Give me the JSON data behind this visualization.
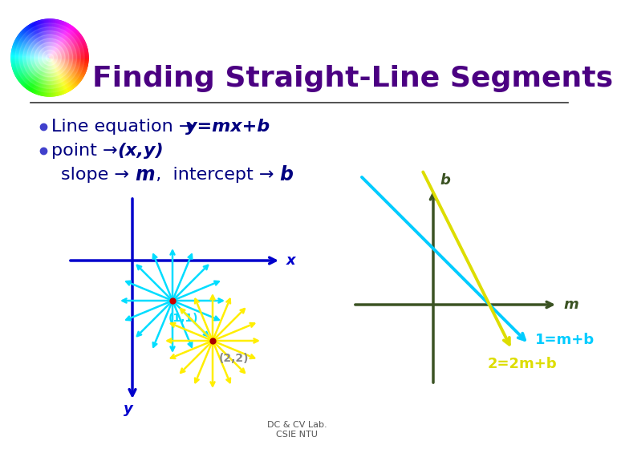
{
  "title": "Finding Straight-Line Segments",
  "title_color": "#4B0082",
  "title_fontsize": 26,
  "bg_color": "#FFFFFF",
  "bullet_color": "#000080",
  "bullet_fontsize": 16,
  "italic_color": "#000080",
  "footer": "DC & CV Lab.\nCSIE NTU",
  "footer_color": "#555555",
  "footer_fontsize": 8,
  "label_1_1": "(1,1)",
  "label_2_2": "(2,2)",
  "label_x": "x",
  "label_y": "y",
  "label_m": "m",
  "label_b": "b",
  "label_eq1": "1=m+b",
  "label_eq2": "2=2m+b",
  "axis_color_blue": "#0000CC",
  "axis_color_dark": "#3B5323",
  "arrow_cyan": "#00DDFF",
  "arrow_yellow": "#FFEE00",
  "eq1_color": "#00CCFF",
  "eq2_color": "#DDDD00",
  "dot_color1": "#CC0000",
  "dot_color2": "#AA0000",
  "sep_line_color": "#333333"
}
